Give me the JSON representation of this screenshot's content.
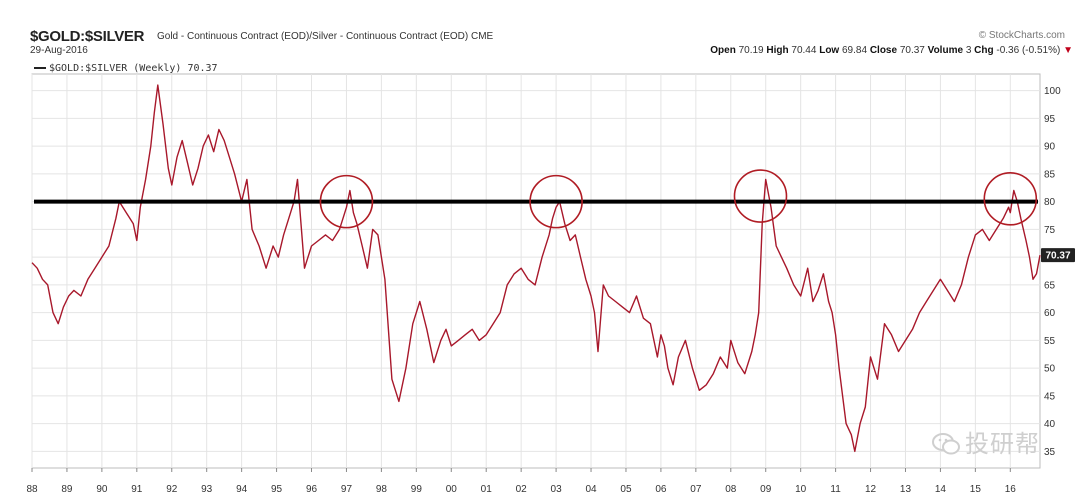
{
  "header": {
    "ticker": "$GOLD:$SILVER",
    "description": "Gold - Continuous Contract (EOD)/Silver - Continuous Contract (EOD) CME",
    "credit": "© StockCharts.com",
    "date": "29-Aug-2016",
    "open_label": "Open",
    "open": "70.19",
    "high_label": "High",
    "high": "70.44",
    "low_label": "Low",
    "low": "69.84",
    "close_label": "Close",
    "close": "70.37",
    "volume_label": "Volume",
    "volume": "3",
    "chg_label": "Chg",
    "chg": "-0.36 (-0.51%)",
    "chg_arrow": "▼"
  },
  "legend": {
    "label": "$GOLD:$SILVER (Weekly) 70.37"
  },
  "watermark": {
    "text": "投研帮"
  },
  "colors": {
    "series": "#a8182b",
    "reference_line": "#000000",
    "circle": "#b01c24",
    "grid": "#e4e4e4",
    "last_badge": "#222222"
  },
  "chart_data": {
    "type": "line",
    "title": "$GOLD:$SILVER",
    "xlim": [
      1988.0,
      2016.85
    ],
    "ylim": [
      32,
      103
    ],
    "x_ticks": [
      "88",
      "89",
      "90",
      "91",
      "92",
      "93",
      "94",
      "95",
      "96",
      "97",
      "98",
      "99",
      "00",
      "01",
      "02",
      "03",
      "04",
      "05",
      "06",
      "07",
      "08",
      "09",
      "10",
      "11",
      "12",
      "13",
      "14",
      "15",
      "16"
    ],
    "y_ticks": [
      35,
      40,
      45,
      50,
      55,
      60,
      65,
      70,
      75,
      80,
      85,
      90,
      95,
      100
    ],
    "grid": true,
    "legend_position": "top-left",
    "last_value": "70.37",
    "reference_line": 80,
    "circles": [
      {
        "x": 1997.0,
        "y": 80
      },
      {
        "x": 2003.0,
        "y": 80
      },
      {
        "x": 2008.85,
        "y": 81
      },
      {
        "x": 2016.0,
        "y": 80.5
      }
    ],
    "series": [
      {
        "name": "$GOLD:$SILVER (Weekly)",
        "x": [
          1988.0,
          1988.15,
          1988.3,
          1988.45,
          1988.6,
          1988.75,
          1988.9,
          1989.05,
          1989.2,
          1989.4,
          1989.6,
          1989.8,
          1990.0,
          1990.2,
          1990.4,
          1990.5,
          1990.7,
          1990.9,
          1991.0,
          1991.1,
          1991.25,
          1991.4,
          1991.5,
          1991.6,
          1991.75,
          1991.9,
          1992.0,
          1992.15,
          1992.3,
          1992.45,
          1992.6,
          1992.75,
          1992.9,
          1993.05,
          1993.2,
          1993.35,
          1993.5,
          1993.65,
          1993.8,
          1994.0,
          1994.15,
          1994.3,
          1994.5,
          1994.7,
          1994.9,
          1995.05,
          1995.2,
          1995.35,
          1995.5,
          1995.6,
          1995.7,
          1995.8,
          1995.9,
          1996.0,
          1996.2,
          1996.4,
          1996.6,
          1996.8,
          1996.9,
          1997.0,
          1997.1,
          1997.2,
          1997.3,
          1997.45,
          1997.6,
          1997.75,
          1997.9,
          1998.0,
          1998.1,
          1998.2,
          1998.3,
          1998.5,
          1998.7,
          1998.9,
          1999.1,
          1999.3,
          1999.5,
          1999.7,
          1999.85,
          2000.0,
          2000.2,
          2000.4,
          2000.6,
          2000.8,
          2001.0,
          2001.2,
          2001.4,
          2001.6,
          2001.8,
          2002.0,
          2002.2,
          2002.4,
          2002.6,
          2002.8,
          2002.9,
          2003.0,
          2003.1,
          2003.25,
          2003.4,
          2003.55,
          2003.7,
          2003.85,
          2004.0,
          2004.1,
          2004.2,
          2004.35,
          2004.5,
          2004.7,
          2004.9,
          2005.1,
          2005.3,
          2005.5,
          2005.7,
          2005.9,
          2006.0,
          2006.1,
          2006.2,
          2006.35,
          2006.5,
          2006.7,
          2006.9,
          2007.1,
          2007.3,
          2007.5,
          2007.7,
          2007.9,
          2008.0,
          2008.2,
          2008.4,
          2008.6,
          2008.7,
          2008.8,
          2008.9,
          2009.0,
          2009.15,
          2009.3,
          2009.45,
          2009.6,
          2009.8,
          2010.0,
          2010.2,
          2010.35,
          2010.5,
          2010.65,
          2010.8,
          2010.9,
          2011.0,
          2011.1,
          2011.2,
          2011.3,
          2011.45,
          2011.55,
          2011.7,
          2011.85,
          2012.0,
          2012.2,
          2012.4,
          2012.6,
          2012.8,
          2013.0,
          2013.2,
          2013.4,
          2013.6,
          2013.8,
          2014.0,
          2014.2,
          2014.4,
          2014.6,
          2014.8,
          2015.0,
          2015.2,
          2015.4,
          2015.6,
          2015.8,
          2015.95,
          2016.0,
          2016.1,
          2016.2,
          2016.3,
          2016.45,
          2016.55,
          2016.65,
          2016.75,
          2016.85
        ],
        "values": [
          69,
          68,
          66,
          65,
          60,
          58,
          61,
          63,
          64,
          63,
          66,
          68,
          70,
          72,
          77,
          80,
          78,
          76,
          73,
          79,
          84,
          90,
          96,
          101,
          94,
          86,
          83,
          88,
          91,
          87,
          83,
          86,
          90,
          92,
          89,
          93,
          91,
          88,
          85,
          80,
          84,
          75,
          72,
          68,
          72,
          70,
          74,
          77,
          80,
          84,
          76,
          68,
          70,
          72,
          73,
          74,
          73,
          75,
          77,
          79,
          82,
          78,
          76,
          72,
          68,
          75,
          74,
          70,
          66,
          57,
          48,
          44,
          50,
          58,
          62,
          57,
          51,
          55,
          57,
          54,
          55,
          56,
          57,
          55,
          56,
          58,
          60,
          65,
          67,
          68,
          66,
          65,
          70,
          74,
          77,
          79,
          80,
          76,
          73,
          74,
          70,
          66,
          63,
          60,
          53,
          65,
          63,
          62,
          61,
          60,
          63,
          59,
          58,
          52,
          56,
          54,
          50,
          47,
          52,
          55,
          50,
          46,
          47,
          49,
          52,
          50,
          55,
          51,
          49,
          53,
          56,
          60,
          76,
          84,
          79,
          72,
          70,
          68,
          65,
          63,
          68,
          62,
          64,
          67,
          62,
          60,
          56,
          50,
          45,
          40,
          38,
          35,
          40,
          43,
          52,
          48,
          58,
          56,
          53,
          55,
          57,
          60,
          62,
          64,
          66,
          64,
          62,
          65,
          70,
          74,
          75,
          73,
          75,
          77,
          79,
          78,
          82,
          80,
          77,
          73,
          70,
          66,
          67,
          70.37
        ]
      }
    ]
  }
}
